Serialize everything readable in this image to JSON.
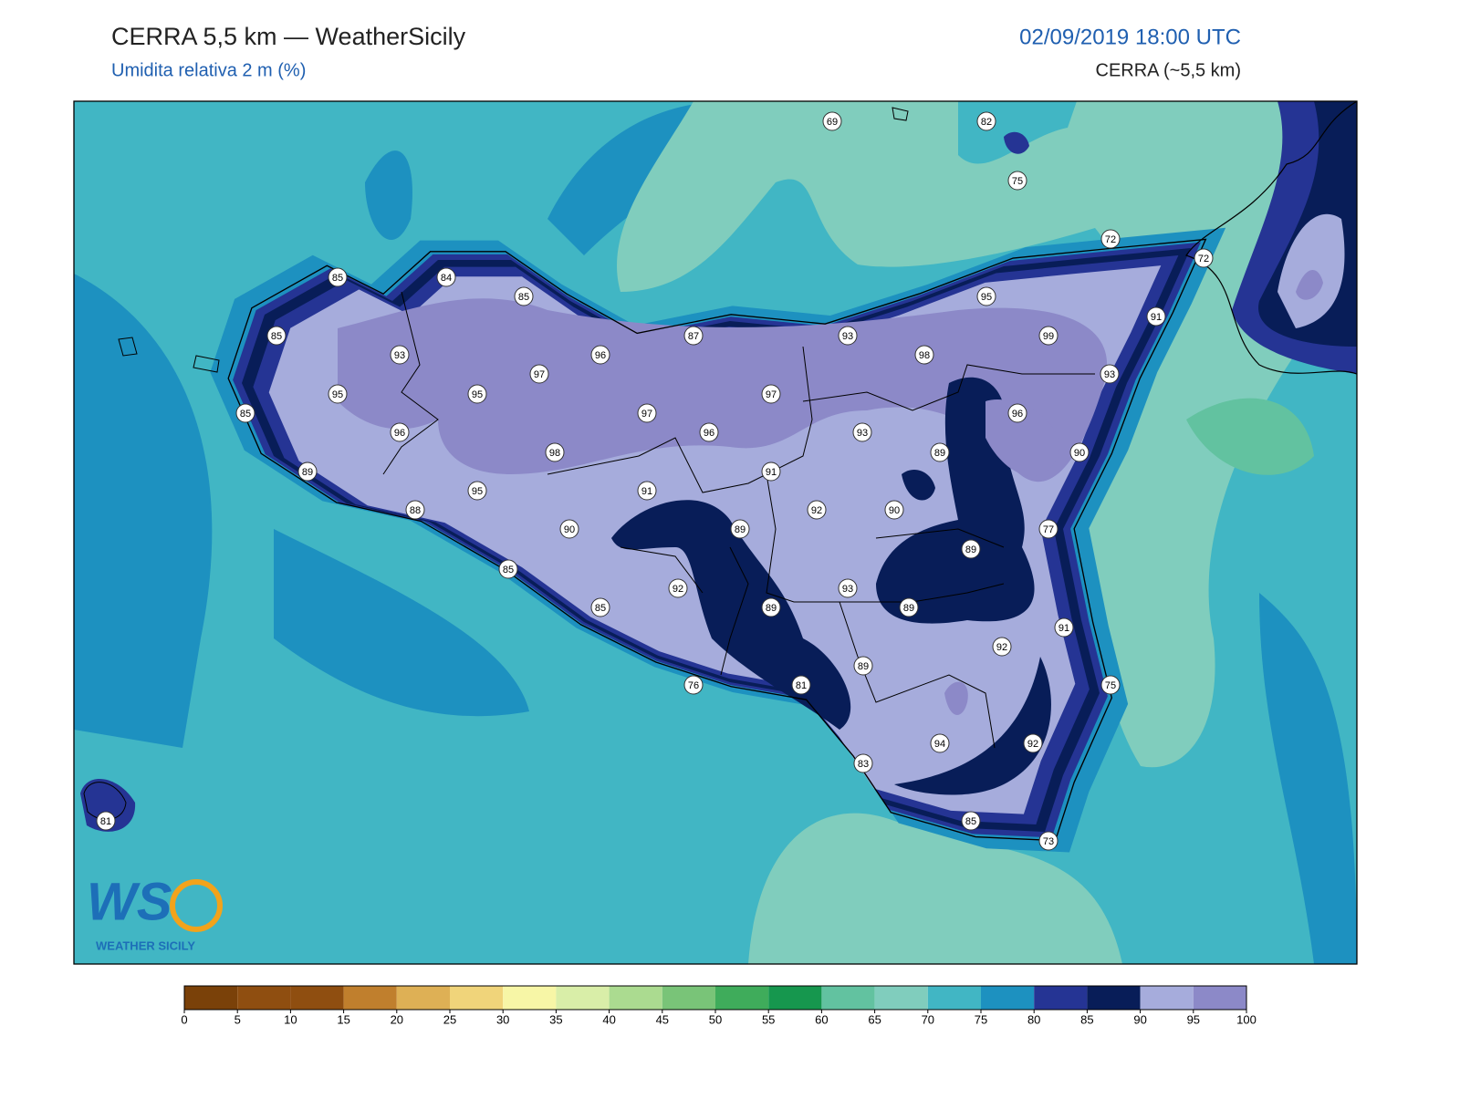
{
  "header": {
    "title": "CERRA 5,5 km — WeatherSicily",
    "subtitle": "Umidita relativa 2 m (%)",
    "datetime": "02/09/2019 18:00 UTC",
    "model": "CERRA (~5,5 km)"
  },
  "map": {
    "stations": [
      69,
      82,
      75,
      72,
      72,
      85,
      84,
      85,
      95,
      91,
      85,
      87,
      93,
      99,
      93,
      96,
      98,
      97,
      93,
      95,
      95,
      97,
      85,
      97,
      96,
      96,
      96,
      93,
      98,
      89,
      90,
      89,
      91,
      95,
      91,
      88,
      92,
      90,
      90,
      89,
      77,
      89,
      85,
      92,
      93,
      85,
      89,
      89,
      91,
      92,
      89,
      76,
      81,
      75,
      94,
      92,
      83,
      81,
      85,
      73
    ]
  },
  "logo": {
    "mark": "WS",
    "text": "WEATHER SICILY"
  },
  "colorbar": {
    "ticks": [
      0,
      5,
      10,
      15,
      20,
      25,
      30,
      35,
      40,
      45,
      50,
      55,
      60,
      65,
      70,
      75,
      80,
      85,
      90,
      95,
      100
    ],
    "colors": [
      "#7a4109",
      "#8f4e10",
      "#8f4e10",
      "#c07f2d",
      "#deb055",
      "#f0d47a",
      "#f7f6a6",
      "#d9eea8",
      "#abdb90",
      "#79c478",
      "#3fac5b",
      "#16974e",
      "#62c2a0",
      "#80cdbd",
      "#41b6c4",
      "#1d91c0",
      "#253494",
      "#081d58",
      "#a6acdc",
      "#8c89c8"
    ]
  }
}
